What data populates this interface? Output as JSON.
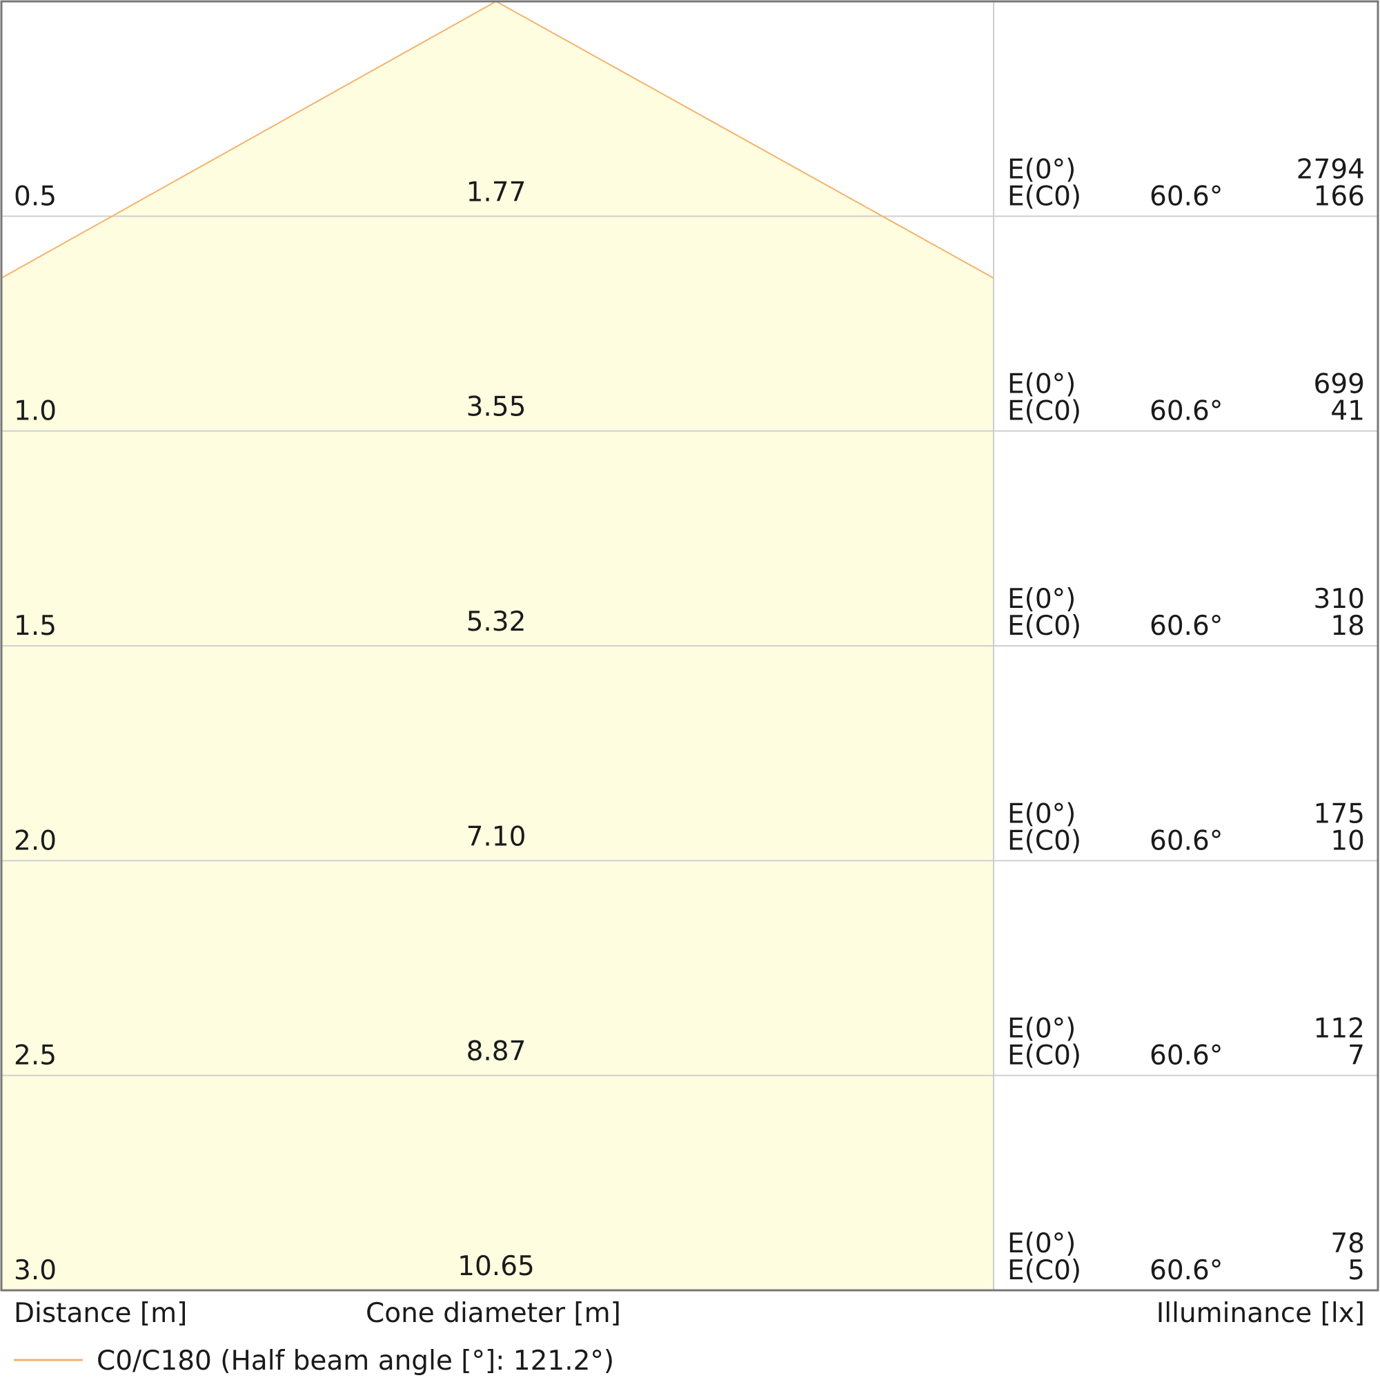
{
  "chart_data": {
    "type": "table",
    "title": "",
    "xlabel": "Cone diameter [m]",
    "ylabel": "Distance [m]",
    "right_label": "Illuminance [lx]",
    "half_angle_label": "60.6°",
    "legend": {
      "label": "C0/C180 (Half beam angle [°]: 121.2°)",
      "color": "#f5b26b",
      "placement": "bottom-left"
    },
    "fill_color": "#fefde0",
    "e0_label": "E(0°)",
    "ec0_label": "E(C0)",
    "rows": [
      {
        "distance": "0.5",
        "diameter": "1.77",
        "e0": "2794",
        "ec0": "166"
      },
      {
        "distance": "1.0",
        "diameter": "3.55",
        "e0": "699",
        "ec0": "41"
      },
      {
        "distance": "1.5",
        "diameter": "5.32",
        "e0": "310",
        "ec0": "18"
      },
      {
        "distance": "2.0",
        "diameter": "7.10",
        "e0": "175",
        "ec0": "10"
      },
      {
        "distance": "2.5",
        "diameter": "8.87",
        "e0": "112",
        "ec0": "7"
      },
      {
        "distance": "3.0",
        "diameter": "10.65",
        "e0": "78",
        "ec0": "5"
      }
    ]
  }
}
